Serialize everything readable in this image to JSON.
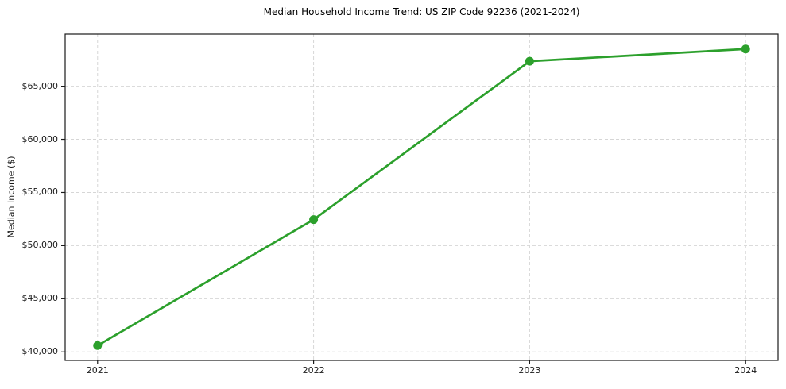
{
  "chart_data": {
    "type": "line",
    "title": "Median Household Income Trend: US ZIP Code 92236 (2021-2024)",
    "xlabel": "",
    "ylabel": "Median Income ($)",
    "x": [
      2021,
      2022,
      2023,
      2024
    ],
    "x_tick_labels": [
      "2021",
      "2022",
      "2023",
      "2024"
    ],
    "series": [
      {
        "name": "Median Household Income",
        "values": [
          40600,
          52450,
          67350,
          68500
        ]
      }
    ],
    "y_ticks": [
      40000,
      45000,
      50000,
      55000,
      60000,
      65000
    ],
    "y_tick_labels": [
      "$40,000",
      "$45,000",
      "$50,000",
      "$55,000",
      "$60,000",
      "$65,000"
    ],
    "ylim": [
      39200,
      69900
    ],
    "xlim": [
      2020.85,
      2024.15
    ],
    "grid": true,
    "grid_style": "dashed",
    "legend": false,
    "marker": "circle",
    "colors": {
      "line": "#2ca02c",
      "marker": "#2ca02c",
      "grid": "#d6d6d6",
      "spine": "#1a1a1a",
      "text": "#1a1a1a",
      "background": "#ffffff"
    }
  }
}
